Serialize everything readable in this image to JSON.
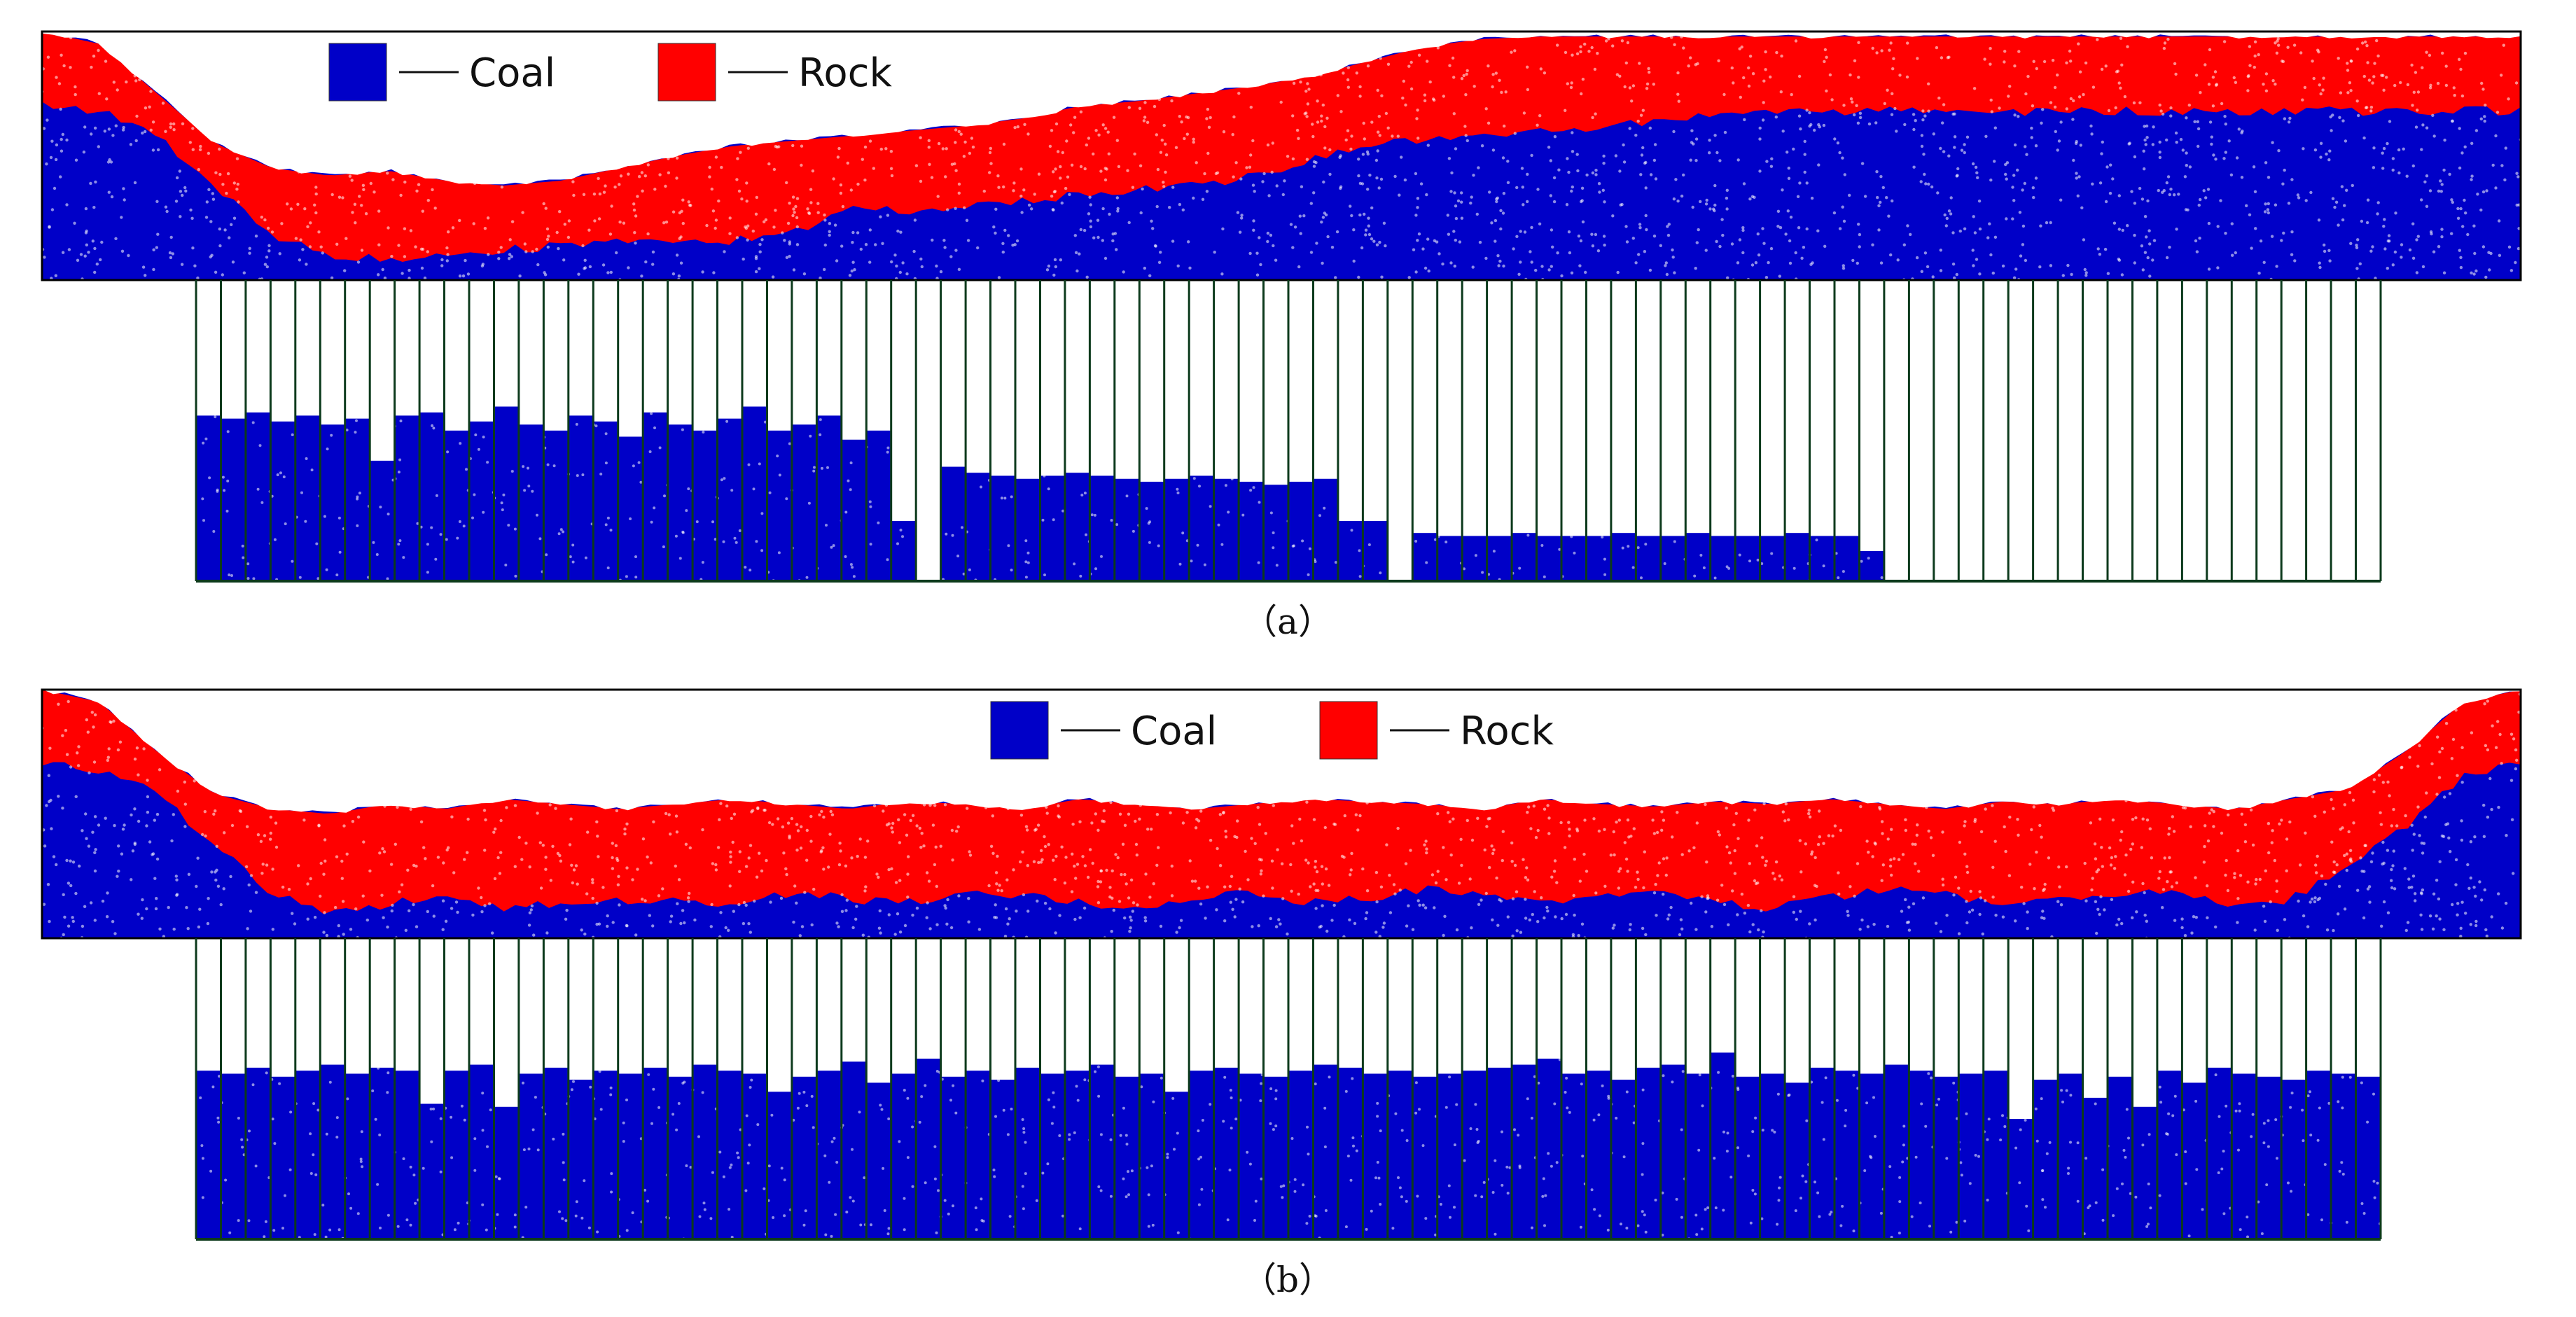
{
  "colors": {
    "coal": "#0000c8",
    "rock": "#ff0000",
    "frame": "#000000",
    "support": "#0c3a1c",
    "background": "#ffffff"
  },
  "legend": [
    {
      "label": "Coal",
      "color": "#0000c8"
    },
    {
      "label": "Rock",
      "color": "#ff0000"
    }
  ],
  "panels": [
    {
      "id": "a",
      "caption": "（a）",
      "support_count": 88,
      "description_free": true,
      "coal_top": [
        0.3,
        0.32,
        0.42,
        0.62,
        0.82,
        0.9,
        0.92,
        0.9,
        0.88,
        0.86,
        0.84,
        0.86,
        0.84,
        0.82,
        0.7,
        0.72,
        0.7,
        0.68,
        0.66,
        0.64,
        0.62,
        0.58,
        0.52,
        0.46,
        0.44,
        0.42,
        0.4,
        0.38,
        0.36,
        0.34,
        0.33,
        0.32,
        0.32,
        0.32,
        0.32,
        0.32,
        0.32,
        0.32,
        0.32,
        0.32,
        0.32,
        0.32,
        0.32,
        0.32
      ],
      "rock_top": [
        0.0,
        0.05,
        0.25,
        0.45,
        0.55,
        0.58,
        0.56,
        0.6,
        0.62,
        0.6,
        0.55,
        0.5,
        0.46,
        0.44,
        0.42,
        0.4,
        0.38,
        0.35,
        0.3,
        0.28,
        0.25,
        0.22,
        0.18,
        0.12,
        0.06,
        0.03,
        0.02,
        0.02,
        0.02,
        0.02,
        0.02,
        0.02,
        0.02,
        0.02,
        0.02,
        0.02,
        0.02,
        0.02,
        0.02,
        0.02,
        0.02,
        0.02,
        0.02,
        0.02
      ],
      "fill_heights": [
        0.55,
        0.54,
        0.56,
        0.53,
        0.55,
        0.52,
        0.54,
        0.4,
        0.55,
        0.56,
        0.5,
        0.53,
        0.58,
        0.52,
        0.5,
        0.55,
        0.53,
        0.48,
        0.56,
        0.52,
        0.5,
        0.54,
        0.58,
        0.5,
        0.52,
        0.55,
        0.47,
        0.5,
        0.2,
        0.0,
        0.38,
        0.36,
        0.35,
        0.34,
        0.35,
        0.36,
        0.35,
        0.34,
        0.33,
        0.34,
        0.35,
        0.34,
        0.33,
        0.32,
        0.33,
        0.34,
        0.2,
        0.2,
        0.0,
        0.16,
        0.15,
        0.15,
        0.15,
        0.16,
        0.15,
        0.15,
        0.15,
        0.16,
        0.15,
        0.15,
        0.16,
        0.15,
        0.15,
        0.15,
        0.16,
        0.15,
        0.15,
        0.1,
        0.0,
        0.0,
        0.0,
        0.0,
        0.0,
        0.0,
        0.0,
        0.0,
        0.0,
        0.0,
        0.0,
        0.0,
        0.0,
        0.0,
        0.0,
        0.0,
        0.0,
        0.0,
        0.0,
        0.0
      ]
    },
    {
      "id": "b",
      "caption": "（b）",
      "support_count": 88,
      "coal_top": [
        0.3,
        0.32,
        0.42,
        0.62,
        0.82,
        0.9,
        0.86,
        0.84,
        0.88,
        0.86,
        0.85,
        0.84,
        0.86,
        0.82,
        0.84,
        0.86,
        0.83,
        0.82,
        0.86,
        0.88,
        0.84,
        0.82,
        0.86,
        0.84,
        0.8,
        0.83,
        0.86,
        0.84,
        0.82,
        0.86,
        0.88,
        0.84,
        0.8,
        0.82,
        0.86,
        0.84,
        0.82,
        0.8,
        0.88,
        0.84,
        0.72,
        0.55,
        0.35,
        0.3
      ],
      "rock_top": [
        0.0,
        0.05,
        0.25,
        0.42,
        0.48,
        0.5,
        0.46,
        0.48,
        0.44,
        0.46,
        0.48,
        0.46,
        0.44,
        0.46,
        0.48,
        0.45,
        0.46,
        0.48,
        0.44,
        0.46,
        0.48,
        0.46,
        0.44,
        0.45,
        0.46,
        0.48,
        0.44,
        0.46,
        0.47,
        0.45,
        0.46,
        0.44,
        0.46,
        0.48,
        0.45,
        0.46,
        0.44,
        0.46,
        0.48,
        0.44,
        0.4,
        0.25,
        0.05,
        0.0
      ],
      "fill_heights": [
        0.56,
        0.55,
        0.57,
        0.54,
        0.56,
        0.58,
        0.55,
        0.57,
        0.56,
        0.45,
        0.56,
        0.58,
        0.44,
        0.55,
        0.57,
        0.53,
        0.56,
        0.55,
        0.57,
        0.54,
        0.58,
        0.56,
        0.55,
        0.49,
        0.54,
        0.56,
        0.59,
        0.52,
        0.55,
        0.6,
        0.54,
        0.56,
        0.53,
        0.57,
        0.55,
        0.56,
        0.58,
        0.54,
        0.55,
        0.49,
        0.56,
        0.57,
        0.55,
        0.54,
        0.56,
        0.58,
        0.57,
        0.55,
        0.56,
        0.54,
        0.55,
        0.56,
        0.57,
        0.58,
        0.6,
        0.55,
        0.56,
        0.53,
        0.57,
        0.58,
        0.55,
        0.62,
        0.54,
        0.55,
        0.52,
        0.57,
        0.56,
        0.55,
        0.58,
        0.56,
        0.54,
        0.55,
        0.56,
        0.4,
        0.53,
        0.55,
        0.47,
        0.54,
        0.44,
        0.56,
        0.52,
        0.57,
        0.55,
        0.54,
        0.53,
        0.56,
        0.55,
        0.54
      ]
    }
  ]
}
